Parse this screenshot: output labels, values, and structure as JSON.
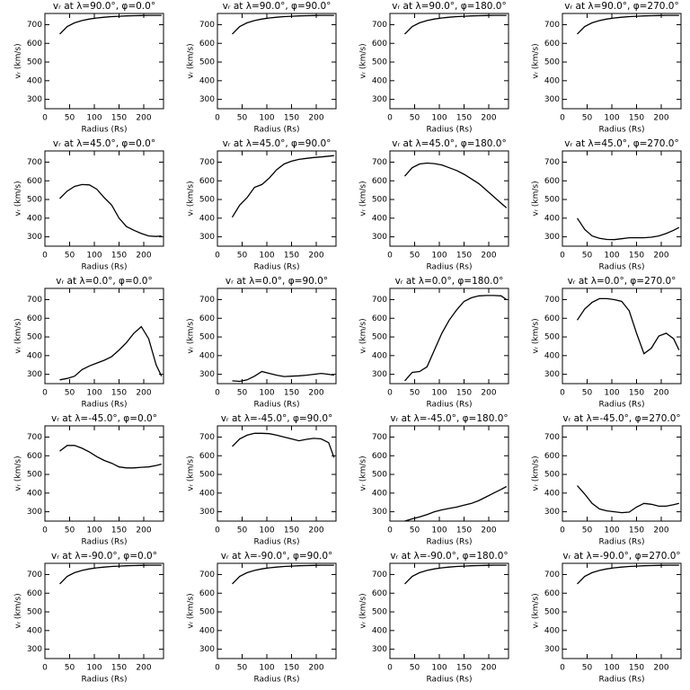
{
  "chart_data": [
    {
      "type": "line",
      "title": "vᵣ at λ=90.0°, φ=0.0°",
      "xlabel": "Radius (Rs)",
      "ylabel": "vᵣ (km/s)",
      "x": [
        30,
        45,
        60,
        75,
        90,
        105,
        120,
        135,
        150,
        165,
        180,
        195,
        210,
        225,
        236
      ],
      "values": [
        650,
        690,
        710,
        722,
        730,
        736,
        740,
        743,
        745,
        747,
        748,
        749,
        750,
        750,
        750
      ],
      "xlim": [
        0,
        240
      ],
      "ylim": [
        250,
        760
      ],
      "xticks": [
        0,
        50,
        100,
        150,
        200
      ],
      "yticks": [
        300,
        400,
        500,
        600,
        700
      ],
      "color": "#000000"
    },
    {
      "type": "line",
      "title": "vᵣ at λ=90.0°, φ=90.0°",
      "xlabel": "Radius (Rs)",
      "ylabel": "vᵣ (km/s)",
      "x": [
        30,
        45,
        60,
        75,
        90,
        105,
        120,
        135,
        150,
        165,
        180,
        195,
        210,
        225,
        236
      ],
      "values": [
        650,
        690,
        710,
        722,
        730,
        736,
        740,
        743,
        745,
        747,
        748,
        749,
        750,
        750,
        750
      ],
      "xlim": [
        0,
        240
      ],
      "ylim": [
        250,
        760
      ],
      "xticks": [
        0,
        50,
        100,
        150,
        200
      ],
      "yticks": [
        300,
        400,
        500,
        600,
        700
      ],
      "color": "#000000"
    },
    {
      "type": "line",
      "title": "vᵣ at λ=90.0°, φ=180.0°",
      "xlabel": "Radius (Rs)",
      "ylabel": "vᵣ (km/s)",
      "x": [
        30,
        45,
        60,
        75,
        90,
        105,
        120,
        135,
        150,
        165,
        180,
        195,
        210,
        225,
        236
      ],
      "values": [
        650,
        690,
        710,
        722,
        730,
        736,
        740,
        743,
        745,
        747,
        748,
        749,
        750,
        750,
        750
      ],
      "xlim": [
        0,
        240
      ],
      "ylim": [
        250,
        760
      ],
      "xticks": [
        0,
        50,
        100,
        150,
        200
      ],
      "yticks": [
        300,
        400,
        500,
        600,
        700
      ],
      "color": "#000000"
    },
    {
      "type": "line",
      "title": "vᵣ at λ=90.0°, φ=270.0°",
      "xlabel": "Radius (Rs)",
      "ylabel": "vᵣ (km/s)",
      "x": [
        30,
        45,
        60,
        75,
        90,
        105,
        120,
        135,
        150,
        165,
        180,
        195,
        210,
        225,
        236
      ],
      "values": [
        650,
        690,
        710,
        722,
        730,
        736,
        740,
        743,
        745,
        747,
        748,
        749,
        750,
        750,
        750
      ],
      "xlim": [
        0,
        240
      ],
      "ylim": [
        250,
        760
      ],
      "xticks": [
        0,
        50,
        100,
        150,
        200
      ],
      "yticks": [
        300,
        400,
        500,
        600,
        700
      ],
      "color": "#000000"
    },
    {
      "type": "line",
      "title": "vᵣ at λ=45.0°, φ=0.0°",
      "xlabel": "Radius (Rs)",
      "ylabel": "vᵣ (km/s)",
      "x": [
        30,
        45,
        60,
        75,
        90,
        105,
        120,
        135,
        150,
        165,
        180,
        195,
        210,
        225,
        236
      ],
      "values": [
        505,
        545,
        570,
        580,
        578,
        555,
        510,
        470,
        400,
        355,
        335,
        318,
        305,
        302,
        305
      ],
      "xlim": [
        0,
        240
      ],
      "ylim": [
        250,
        760
      ],
      "xticks": [
        0,
        50,
        100,
        150,
        200
      ],
      "yticks": [
        300,
        400,
        500,
        600,
        700
      ],
      "color": "#000000"
    },
    {
      "type": "line",
      "title": "vᵣ at λ=45.0°, φ=90.0°",
      "xlabel": "Radius (Rs)",
      "ylabel": "vᵣ (km/s)",
      "x": [
        30,
        45,
        60,
        75,
        90,
        105,
        120,
        135,
        150,
        165,
        180,
        195,
        210,
        225,
        236
      ],
      "values": [
        405,
        470,
        510,
        565,
        580,
        615,
        660,
        690,
        705,
        715,
        720,
        725,
        728,
        732,
        735
      ],
      "xlim": [
        0,
        240
      ],
      "ylim": [
        250,
        760
      ],
      "xticks": [
        0,
        50,
        100,
        150,
        200
      ],
      "yticks": [
        300,
        400,
        500,
        600,
        700
      ],
      "color": "#000000"
    },
    {
      "type": "line",
      "title": "vᵣ at λ=45.0°, φ=180.0°",
      "xlabel": "Radius (Rs)",
      "ylabel": "vᵣ (km/s)",
      "x": [
        30,
        45,
        60,
        75,
        90,
        105,
        120,
        135,
        150,
        165,
        180,
        195,
        210,
        225,
        236
      ],
      "values": [
        625,
        670,
        690,
        695,
        692,
        685,
        670,
        655,
        635,
        610,
        585,
        550,
        515,
        480,
        455
      ],
      "xlim": [
        0,
        240
      ],
      "ylim": [
        250,
        760
      ],
      "xticks": [
        0,
        50,
        100,
        150,
        200
      ],
      "yticks": [
        300,
        400,
        500,
        600,
        700
      ],
      "color": "#000000"
    },
    {
      "type": "line",
      "title": "vᵣ at λ=45.0°, φ=270.0°",
      "xlabel": "Radius (Rs)",
      "ylabel": "vᵣ (km/s)",
      "x": [
        30,
        45,
        60,
        75,
        90,
        105,
        120,
        135,
        150,
        165,
        180,
        195,
        210,
        225,
        236
      ],
      "values": [
        400,
        340,
        305,
        292,
        286,
        285,
        290,
        295,
        295,
        295,
        298,
        305,
        318,
        335,
        350
      ],
      "xlim": [
        0,
        240
      ],
      "ylim": [
        250,
        760
      ],
      "xticks": [
        0,
        50,
        100,
        150,
        200
      ],
      "yticks": [
        300,
        400,
        500,
        600,
        700
      ],
      "color": "#000000"
    },
    {
      "type": "line",
      "title": "vᵣ at λ=0.0°, φ=0.0°",
      "xlabel": "Radius (Rs)",
      "ylabel": "vᵣ (km/s)",
      "x": [
        30,
        45,
        60,
        75,
        90,
        105,
        120,
        135,
        150,
        165,
        180,
        195,
        210,
        225,
        236
      ],
      "values": [
        270,
        278,
        290,
        325,
        345,
        360,
        375,
        395,
        430,
        470,
        520,
        555,
        490,
        350,
        290
      ],
      "xlim": [
        0,
        240
      ],
      "ylim": [
        250,
        760
      ],
      "xticks": [
        0,
        50,
        100,
        150,
        200
      ],
      "yticks": [
        300,
        400,
        500,
        600,
        700
      ],
      "color": "#000000"
    },
    {
      "type": "line",
      "title": "vᵣ at λ=0.0°, φ=90.0°",
      "xlabel": "Radius (Rs)",
      "ylabel": "vᵣ (km/s)",
      "x": [
        30,
        45,
        60,
        75,
        90,
        105,
        120,
        135,
        150,
        165,
        180,
        195,
        210,
        225,
        236
      ],
      "values": [
        265,
        262,
        270,
        290,
        315,
        305,
        295,
        288,
        290,
        292,
        295,
        300,
        305,
        300,
        295
      ],
      "xlim": [
        0,
        240
      ],
      "ylim": [
        250,
        760
      ],
      "xticks": [
        0,
        50,
        100,
        150,
        200
      ],
      "yticks": [
        300,
        400,
        500,
        600,
        700
      ],
      "color": "#000000"
    },
    {
      "type": "line",
      "title": "vᵣ at λ=0.0°, φ=180.0°",
      "xlabel": "Radius (Rs)",
      "ylabel": "vᵣ (km/s)",
      "x": [
        30,
        45,
        60,
        75,
        90,
        105,
        120,
        135,
        150,
        165,
        180,
        195,
        210,
        225,
        236
      ],
      "values": [
        265,
        310,
        315,
        340,
        430,
        520,
        590,
        645,
        690,
        710,
        720,
        722,
        722,
        720,
        700
      ],
      "xlim": [
        0,
        240
      ],
      "ylim": [
        250,
        760
      ],
      "xticks": [
        0,
        50,
        100,
        150,
        200
      ],
      "yticks": [
        300,
        400,
        500,
        600,
        700
      ],
      "color": "#000000"
    },
    {
      "type": "line",
      "title": "vᵣ at λ=0.0°, φ=270.0°",
      "xlabel": "Radius (Rs)",
      "ylabel": "vᵣ (km/s)",
      "x": [
        30,
        45,
        60,
        75,
        90,
        105,
        120,
        135,
        150,
        165,
        180,
        195,
        210,
        225,
        236
      ],
      "values": [
        590,
        650,
        685,
        705,
        705,
        700,
        690,
        640,
        520,
        410,
        440,
        505,
        520,
        490,
        430
      ],
      "xlim": [
        0,
        240
      ],
      "ylim": [
        250,
        760
      ],
      "xticks": [
        0,
        50,
        100,
        150,
        200
      ],
      "yticks": [
        300,
        400,
        500,
        600,
        700
      ],
      "color": "#000000"
    },
    {
      "type": "line",
      "title": "vᵣ at λ=-45.0°, φ=0.0°",
      "xlabel": "Radius (Rs)",
      "ylabel": "vᵣ (km/s)",
      "x": [
        30,
        45,
        60,
        75,
        90,
        105,
        120,
        135,
        150,
        165,
        180,
        195,
        210,
        225,
        236
      ],
      "values": [
        625,
        655,
        655,
        640,
        620,
        595,
        575,
        560,
        540,
        535,
        535,
        538,
        540,
        548,
        555
      ],
      "xlim": [
        0,
        240
      ],
      "ylim": [
        250,
        760
      ],
      "xticks": [
        0,
        50,
        100,
        150,
        200
      ],
      "yticks": [
        300,
        400,
        500,
        600,
        700
      ],
      "color": "#000000"
    },
    {
      "type": "line",
      "title": "vᵣ at λ=-45.0°, φ=90.0°",
      "xlabel": "Radius (Rs)",
      "ylabel": "vᵣ (km/s)",
      "x": [
        30,
        45,
        60,
        75,
        90,
        105,
        120,
        135,
        150,
        165,
        180,
        195,
        210,
        225,
        236
      ],
      "values": [
        650,
        690,
        710,
        720,
        720,
        718,
        710,
        700,
        690,
        680,
        688,
        693,
        690,
        670,
        590
      ],
      "xlim": [
        0,
        240
      ],
      "ylim": [
        250,
        760
      ],
      "xticks": [
        0,
        50,
        100,
        150,
        200
      ],
      "yticks": [
        300,
        400,
        500,
        600,
        700
      ],
      "color": "#000000"
    },
    {
      "type": "line",
      "title": "vᵣ at λ=-45.0°, φ=180.0°",
      "xlabel": "Radius (Rs)",
      "ylabel": "vᵣ (km/s)",
      "x": [
        30,
        45,
        60,
        75,
        90,
        105,
        120,
        135,
        150,
        165,
        180,
        195,
        210,
        225,
        236
      ],
      "values": [
        250,
        262,
        272,
        285,
        300,
        310,
        318,
        325,
        335,
        345,
        360,
        380,
        400,
        420,
        435
      ],
      "xlim": [
        0,
        240
      ],
      "ylim": [
        250,
        760
      ],
      "xticks": [
        0,
        50,
        100,
        150,
        200
      ],
      "yticks": [
        300,
        400,
        500,
        600,
        700
      ],
      "color": "#000000"
    },
    {
      "type": "line",
      "title": "vᵣ at λ=-45.0°, φ=270.0°",
      "xlabel": "Radius (Rs)",
      "ylabel": "vᵣ (km/s)",
      "x": [
        30,
        45,
        60,
        75,
        90,
        105,
        120,
        135,
        150,
        165,
        180,
        195,
        210,
        225,
        236
      ],
      "values": [
        440,
        395,
        345,
        315,
        305,
        300,
        295,
        298,
        325,
        345,
        340,
        330,
        330,
        338,
        345
      ],
      "xlim": [
        0,
        240
      ],
      "ylim": [
        250,
        760
      ],
      "xticks": [
        0,
        50,
        100,
        150,
        200
      ],
      "yticks": [
        300,
        400,
        500,
        600,
        700
      ],
      "color": "#000000"
    },
    {
      "type": "line",
      "title": "vᵣ at λ=-90.0°, φ=0.0°",
      "xlabel": "Radius (Rs)",
      "ylabel": "vᵣ (km/s)",
      "x": [
        30,
        45,
        60,
        75,
        90,
        105,
        120,
        135,
        150,
        165,
        180,
        195,
        210,
        225,
        236
      ],
      "values": [
        650,
        690,
        710,
        722,
        730,
        736,
        740,
        743,
        745,
        747,
        748,
        749,
        750,
        750,
        750
      ],
      "xlim": [
        0,
        240
      ],
      "ylim": [
        250,
        760
      ],
      "xticks": [
        0,
        50,
        100,
        150,
        200
      ],
      "yticks": [
        300,
        400,
        500,
        600,
        700
      ],
      "color": "#000000"
    },
    {
      "type": "line",
      "title": "vᵣ at λ=-90.0°, φ=90.0°",
      "xlabel": "Radius (Rs)",
      "ylabel": "vᵣ (km/s)",
      "x": [
        30,
        45,
        60,
        75,
        90,
        105,
        120,
        135,
        150,
        165,
        180,
        195,
        210,
        225,
        236
      ],
      "values": [
        650,
        690,
        710,
        722,
        730,
        736,
        740,
        743,
        745,
        747,
        748,
        749,
        750,
        750,
        750
      ],
      "xlim": [
        0,
        240
      ],
      "ylim": [
        250,
        760
      ],
      "xticks": [
        0,
        50,
        100,
        150,
        200
      ],
      "yticks": [
        300,
        400,
        500,
        600,
        700
      ],
      "color": "#000000"
    },
    {
      "type": "line",
      "title": "vᵣ at λ=-90.0°, φ=180.0°",
      "xlabel": "Radius (Rs)",
      "ylabel": "vᵣ (km/s)",
      "x": [
        30,
        45,
        60,
        75,
        90,
        105,
        120,
        135,
        150,
        165,
        180,
        195,
        210,
        225,
        236
      ],
      "values": [
        650,
        690,
        710,
        722,
        730,
        736,
        740,
        743,
        745,
        747,
        748,
        749,
        750,
        750,
        750
      ],
      "xlim": [
        0,
        240
      ],
      "ylim": [
        250,
        760
      ],
      "xticks": [
        0,
        50,
        100,
        150,
        200
      ],
      "yticks": [
        300,
        400,
        500,
        600,
        700
      ],
      "color": "#000000"
    },
    {
      "type": "line",
      "title": "vᵣ at λ=-90.0°, φ=270.0°",
      "xlabel": "Radius (Rs)",
      "ylabel": "vᵣ (km/s)",
      "x": [
        30,
        45,
        60,
        75,
        90,
        105,
        120,
        135,
        150,
        165,
        180,
        195,
        210,
        225,
        236
      ],
      "values": [
        650,
        690,
        710,
        722,
        730,
        736,
        740,
        743,
        745,
        747,
        748,
        749,
        750,
        750,
        750
      ],
      "xlim": [
        0,
        240
      ],
      "ylim": [
        250,
        760
      ],
      "xticks": [
        0,
        50,
        100,
        150,
        200
      ],
      "yticks": [
        300,
        400,
        500,
        600,
        700
      ],
      "color": "#000000"
    }
  ]
}
